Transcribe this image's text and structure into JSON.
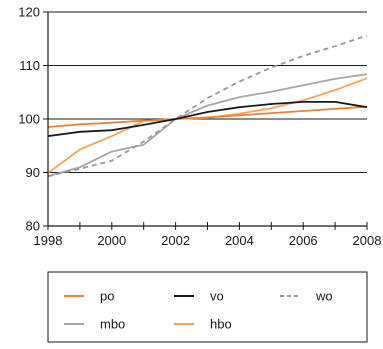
{
  "chart_data": {
    "type": "line",
    "title": "",
    "xlabel": "",
    "ylabel": "",
    "xlim": [
      1998,
      2008
    ],
    "ylim": [
      80,
      120
    ],
    "x_ticks": [
      1998,
      2000,
      2002,
      2004,
      2006,
      2008
    ],
    "x_tick_labels": [
      "1998",
      "2000",
      "2002",
      "2004",
      "2006",
      "2008"
    ],
    "y_ticks": [
      80,
      90,
      100,
      110,
      120
    ],
    "y_tick_labels": [
      "80",
      "90",
      "100",
      "110",
      "120"
    ],
    "grid": "horizontal",
    "legend_position": "bottom",
    "x": [
      1998,
      1999,
      2000,
      2001,
      2002,
      2003,
      2004,
      2005,
      2006,
      2007,
      2008
    ],
    "series": [
      {
        "name": "po",
        "color": "#e8833a",
        "dash": "solid",
        "values": [
          98.5,
          99.0,
          99.3,
          99.7,
          100.0,
          100.3,
          100.7,
          101.1,
          101.5,
          101.9,
          102.3
        ]
      },
      {
        "name": "vo",
        "color": "#1a1a1a",
        "dash": "solid",
        "values": [
          96.8,
          97.6,
          97.9,
          98.9,
          100.0,
          101.3,
          102.2,
          102.8,
          103.2,
          103.2,
          102.2
        ]
      },
      {
        "name": "wo",
        "color": "#999999",
        "dash": "dashed",
        "values": [
          89.3,
          90.7,
          92.2,
          95.8,
          100.0,
          103.9,
          107.0,
          109.6,
          111.8,
          113.6,
          115.6
        ]
      },
      {
        "name": "mbo",
        "color": "#a6a6a6",
        "dash": "solid",
        "values": [
          89.3,
          91.0,
          93.9,
          95.2,
          100.0,
          102.5,
          104.1,
          105.1,
          106.3,
          107.5,
          108.4
        ]
      },
      {
        "name": "hbo",
        "color": "#f5a460",
        "dash": "solid",
        "values": [
          89.9,
          94.3,
          96.8,
          99.6,
          100.0,
          100.2,
          101.0,
          102.0,
          103.5,
          105.4,
          107.6
        ]
      }
    ]
  }
}
